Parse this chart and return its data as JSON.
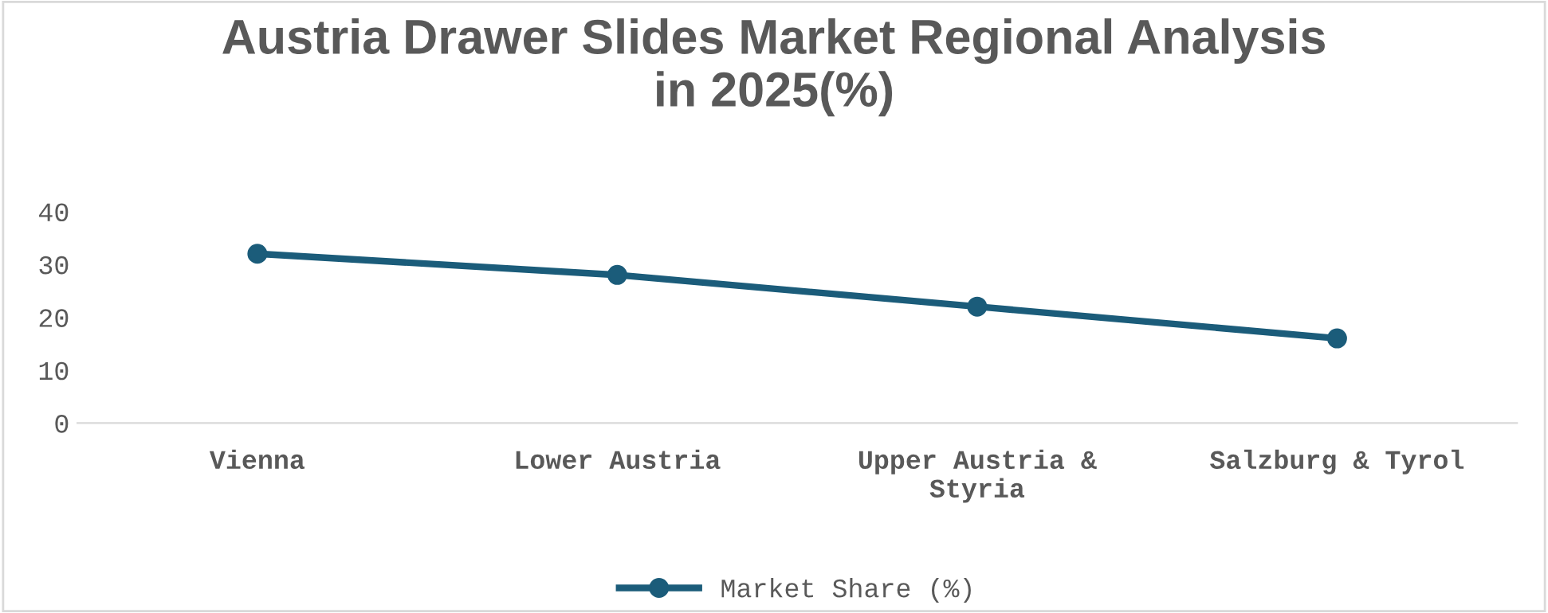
{
  "chart_data": {
    "type": "line",
    "title": "Austria Drawer Slides Market Regional Analysis\nin 2025(%)",
    "categories": [
      "Vienna",
      "Lower Austria",
      "Upper Austria &\nStyria",
      "Salzburg & Tyrol"
    ],
    "series": [
      {
        "name": "Market Share (%)",
        "color": "#1b5c7a",
        "values": [
          32,
          28,
          22,
          16
        ]
      }
    ],
    "ylim": [
      0,
      40
    ],
    "yticks": [
      0,
      10,
      20,
      30,
      40
    ],
    "grid": false,
    "legend": "bottom",
    "marker": "circle",
    "line_style": "solid"
  }
}
